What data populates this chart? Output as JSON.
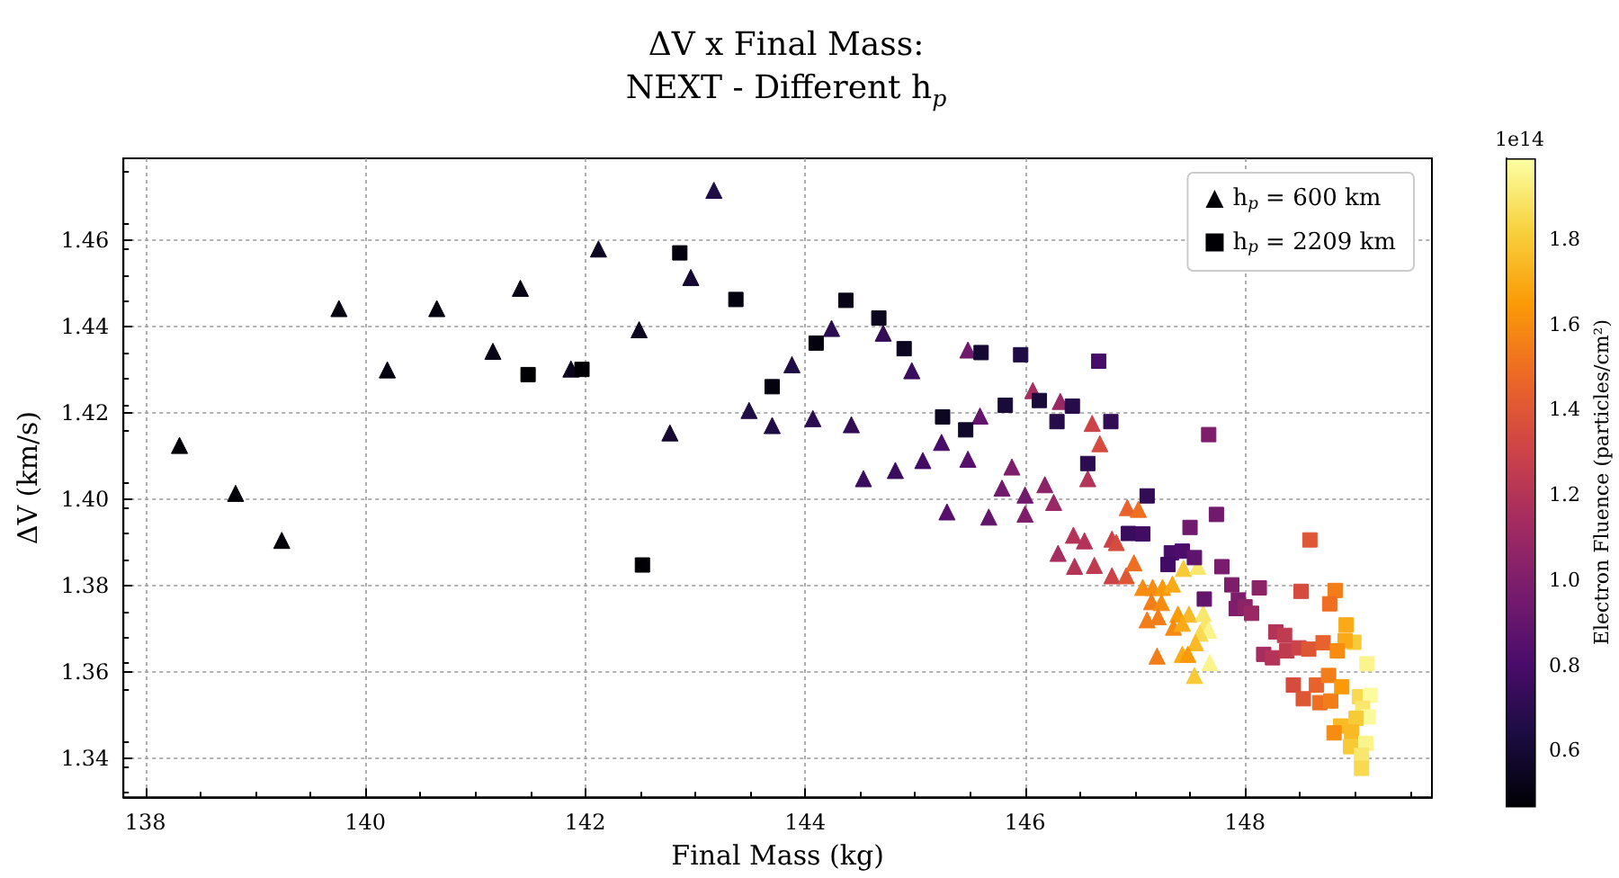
{
  "chart_data": {
    "type": "scatter",
    "title": "ΔV x Final Mass:\nNEXT - Different h$_{p}$",
    "xlabel": "Final Mass (kg)",
    "ylabel": "ΔV (km/s)",
    "clabel": "Electron Fluence (particles/cm²)",
    "annotations": [
      "1e14"
    ],
    "xlim": [
      137.8,
      149.7
    ],
    "xticks": [
      138,
      140,
      142,
      144,
      146,
      148
    ],
    "ylim": [
      1.331,
      1.479
    ],
    "yticks": [
      1.34,
      1.36,
      1.38,
      {
        "value": 1.4,
        "label": "1.40"
      },
      1.42,
      1.44,
      1.46
    ],
    "clim": [
      0.47,
      1.99
    ],
    "cticks": [
      0.6,
      0.8,
      {
        "value": 1,
        "label": "1.0"
      },
      1.2,
      1.4,
      1.6,
      1.8
    ],
    "grid": true,
    "legend": "top right",
    "series": [
      {
        "name": "h$_{p}$ = 600 km",
        "marker": "triangle",
        "colors": [
          "#000004",
          "#020108",
          "#020108",
          "#05020f",
          "#05020f",
          "#05020f",
          "#080416",
          "#080416",
          "#0a041a",
          "#0d0621",
          "#0d0621",
          "#150933",
          "#150933",
          "#1e0c44",
          "#1e0c44",
          "#1e0c44",
          "#1e0c44",
          "#2c0c50",
          "#2c0c50",
          "#320c55",
          "#3a0c5d",
          "#320c55",
          "#3a0c5d",
          "#3a0c5d",
          "#420c64",
          "#480c69",
          "#56106c",
          "#711a6d",
          "#56106c",
          "#63156c",
          "#63156c",
          "#711a6d",
          "#7e1e6b",
          "#711a6d",
          "#7e1e6b",
          "#a62d5f",
          "#8c2367",
          "#992864",
          "#992864",
          "#b33458",
          "#a62d5f",
          "#b33458",
          "#b33458",
          "#cb4248",
          "#d54c3f",
          "#b33458",
          "#bf3b50",
          "#cb4248",
          "#d54c3f",
          "#cb4248",
          "#de5735",
          "#e7622d",
          "#ee6e22",
          "#ee6e22",
          "#f78c10",
          "#f78c10",
          "#fb9a06",
          "#faaa16",
          "#f8ca36",
          "#f9e76d",
          "#f37d19",
          "#f78c10",
          "#f37d19",
          "#f37d19",
          "#fb9a06",
          "#f9ba26",
          "#f78c10",
          "#faaa16",
          "#f9e76d",
          "#f9e76d",
          "#fbf48c",
          "#f8d94f",
          "#f9ba26",
          "#f37d19",
          "#faaa16",
          "#fb9a06",
          "#fbf48c",
          "#f8ca36"
        ],
        "x": [
          138.31,
          138.82,
          139.24,
          139.76,
          140.2,
          140.65,
          141.16,
          141.41,
          141.87,
          142.12,
          142.49,
          142.77,
          142.96,
          143.17,
          143.49,
          143.7,
          143.88,
          144.07,
          144.24,
          144.42,
          144.53,
          144.71,
          144.82,
          144.97,
          145.07,
          145.24,
          145.29,
          145.48,
          145.48,
          145.59,
          145.67,
          145.79,
          145.88,
          146.0,
          146.0,
          146.07,
          146.18,
          146.26,
          146.32,
          146.44,
          146.3,
          146.54,
          146.45,
          146.61,
          146.68,
          146.57,
          146.63,
          146.79,
          146.83,
          146.79,
          146.92,
          146.93,
          147.03,
          146.99,
          147.07,
          147.16,
          147.25,
          147.34,
          147.44,
          147.57,
          147.15,
          147.24,
          147.11,
          147.21,
          147.39,
          147.49,
          147.35,
          147.43,
          147.62,
          147.64,
          147.67,
          147.59,
          147.55,
          147.2,
          147.43,
          147.48,
          147.68,
          147.54
        ],
        "values": [
          1.4125,
          1.4014,
          1.3905,
          1.4442,
          1.43,
          1.4442,
          1.4343,
          1.4489,
          1.4302,
          1.458,
          1.4393,
          1.4154,
          1.4514,
          1.4716,
          1.4206,
          1.4171,
          1.4312,
          1.4187,
          1.4396,
          1.4173,
          1.4048,
          1.4385,
          1.4067,
          1.4298,
          1.409,
          1.4132,
          1.3971,
          1.4346,
          1.4093,
          1.4193,
          1.3959,
          1.4026,
          1.4075,
          1.401,
          1.3966,
          1.4252,
          1.4034,
          1.3993,
          1.4227,
          1.3917,
          1.3875,
          1.3904,
          1.3845,
          1.4176,
          1.4129,
          1.4048,
          1.3847,
          1.3908,
          1.39,
          1.3823,
          1.3823,
          1.3981,
          1.3977,
          1.3853,
          1.3796,
          1.3796,
          1.3796,
          1.3804,
          1.384,
          1.3845,
          1.3763,
          1.3761,
          1.3721,
          1.3728,
          1.3734,
          1.3734,
          1.3704,
          1.3713,
          1.3736,
          1.3713,
          1.3697,
          1.369,
          1.3668,
          1.3637,
          1.3641,
          1.3641,
          1.3622,
          1.3592
        ],
        "cvalues": [
          0.47,
          0.48,
          0.48,
          0.5,
          0.5,
          0.5,
          0.52,
          0.52,
          0.53,
          0.55,
          0.55,
          0.6,
          0.6,
          0.65,
          0.65,
          0.65,
          0.65,
          0.7,
          0.7,
          0.72,
          0.75,
          0.72,
          0.75,
          0.75,
          0.78,
          0.8,
          0.85,
          0.95,
          0.85,
          0.9,
          0.9,
          0.95,
          1.0,
          0.95,
          1.0,
          1.15,
          1.05,
          1.1,
          1.1,
          1.2,
          1.15,
          1.2,
          1.2,
          1.3,
          1.35,
          1.2,
          1.25,
          1.3,
          1.35,
          1.3,
          1.4,
          1.45,
          1.5,
          1.5,
          1.6,
          1.6,
          1.65,
          1.7,
          1.8,
          1.9,
          1.55,
          1.6,
          1.55,
          1.55,
          1.65,
          1.75,
          1.6,
          1.7,
          1.9,
          1.9,
          1.95,
          1.85,
          1.75,
          1.55,
          1.7,
          1.65,
          1.95,
          1.8
        ]
      },
      {
        "name": "h$_{p}$ = 2209 km",
        "marker": "square",
        "colors": [
          "#000004",
          "#000004",
          "#05020f",
          "#000004",
          "#05020f",
          "#05020f",
          "#05020f",
          "#080416",
          "#0d0621",
          "#0d0621",
          "#0d0621",
          "#12082c",
          "#150933",
          "#180b3a",
          "#1e0c44",
          "#180b3a",
          "#260c4b",
          "#260c4b",
          "#480c69",
          "#320c55",
          "#2c0c50",
          "#320c55",
          "#7e1e6b",
          "#3a0c5d",
          "#420c64",
          "#711a6d",
          "#711a6d",
          "#480c69",
          "#4d0d6b",
          "#420c64",
          "#5e136c",
          "#63156c",
          "#791c6d",
          "#7e1e6b",
          "#8c2367",
          "#7e1e6b",
          "#7e1e6b",
          "#8c2367",
          "#992864",
          "#de5735",
          "#d54c3f",
          "#f37d19",
          "#ee6e22",
          "#faaa16",
          "#f8ca36",
          "#faaa16",
          "#fbf48c",
          "#b33458",
          "#bf3b50",
          "#a62d5f",
          "#b33458",
          "#bf3b50",
          "#cb4248",
          "#de5735",
          "#e7622d",
          "#f78c10",
          "#d54c3f",
          "#de5735",
          "#e7622d",
          "#ee6e22",
          "#f37d19",
          "#f37d19",
          "#fb9a06",
          "#f8d94f",
          "#fcfc9e",
          "#f9e76d",
          "#fbfa98",
          "#f8ca36",
          "#f9ba26",
          "#f78c10",
          "#f9ba26",
          "#fbf48c",
          "#f8ca36",
          "#f9e76d",
          "#f8d94f"
        ],
        "x": [
          141.48,
          141.97,
          142.86,
          142.52,
          143.37,
          143.7,
          144.1,
          144.37,
          144.67,
          144.9,
          145.25,
          145.46,
          145.6,
          145.82,
          145.96,
          146.13,
          146.29,
          146.43,
          146.67,
          146.78,
          146.57,
          147.11,
          147.67,
          146.94,
          147.07,
          147.5,
          147.74,
          147.33,
          147.43,
          147.3,
          147.54,
          147.63,
          147.79,
          147.88,
          148.13,
          147.94,
          147.92,
          148.0,
          148.06,
          148.59,
          148.51,
          148.82,
          148.77,
          148.92,
          148.99,
          148.91,
          149.11,
          148.28,
          148.36,
          148.17,
          148.25,
          148.38,
          148.49,
          148.58,
          148.71,
          148.84,
          148.44,
          148.53,
          148.65,
          148.68,
          148.76,
          148.78,
          148.88,
          149.04,
          149.14,
          149.07,
          149.12,
          149.01,
          148.87,
          148.81,
          148.97,
          149.1,
          148.96,
          149.06,
          149.06
        ],
        "values": [
          1.4289,
          1.4301,
          1.4571,
          1.3848,
          1.4463,
          1.4261,
          1.4362,
          1.4461,
          1.442,
          1.4349,
          1.4191,
          1.4161,
          1.434,
          1.4218,
          1.4335,
          1.4229,
          1.418,
          1.4216,
          1.432,
          1.418,
          1.4083,
          1.4008,
          1.415,
          1.3921,
          1.392,
          1.3935,
          1.3965,
          1.3876,
          1.388,
          1.3849,
          1.3865,
          1.3769,
          1.3844,
          1.3802,
          1.3795,
          1.3767,
          1.3747,
          1.3751,
          1.3736,
          1.3906,
          1.3787,
          1.3789,
          1.3758,
          1.3709,
          1.3669,
          1.3673,
          1.3619,
          1.3693,
          1.3685,
          1.3641,
          1.3633,
          1.3649,
          1.3656,
          1.3653,
          1.3668,
          1.3649,
          1.357,
          1.3538,
          1.357,
          1.3529,
          1.3592,
          1.3533,
          1.3566,
          1.3543,
          1.3546,
          1.3516,
          1.3496,
          1.3493,
          1.3475,
          1.3459,
          1.3461,
          1.3435,
          1.3427,
          1.3407,
          1.3377
        ],
        "cvalues": [
          0.47,
          0.47,
          0.5,
          0.47,
          0.5,
          0.5,
          0.5,
          0.52,
          0.55,
          0.55,
          0.55,
          0.58,
          0.6,
          0.62,
          0.65,
          0.62,
          0.68,
          0.68,
          0.8,
          0.72,
          0.7,
          0.72,
          1.0,
          0.75,
          0.78,
          0.95,
          0.95,
          0.8,
          0.82,
          0.78,
          0.88,
          0.9,
          0.98,
          1.0,
          1.05,
          1.0,
          1.0,
          1.05,
          1.1,
          1.4,
          1.35,
          1.55,
          1.5,
          1.7,
          1.8,
          1.7,
          1.95,
          1.2,
          1.25,
          1.15,
          1.2,
          1.25,
          1.3,
          1.4,
          1.45,
          1.6,
          1.35,
          1.4,
          1.45,
          1.5,
          1.55,
          1.55,
          1.65,
          1.85,
          1.98,
          1.9,
          1.97,
          1.8,
          1.75,
          1.6,
          1.75,
          1.95,
          1.8,
          1.9,
          1.85
        ]
      }
    ]
  }
}
